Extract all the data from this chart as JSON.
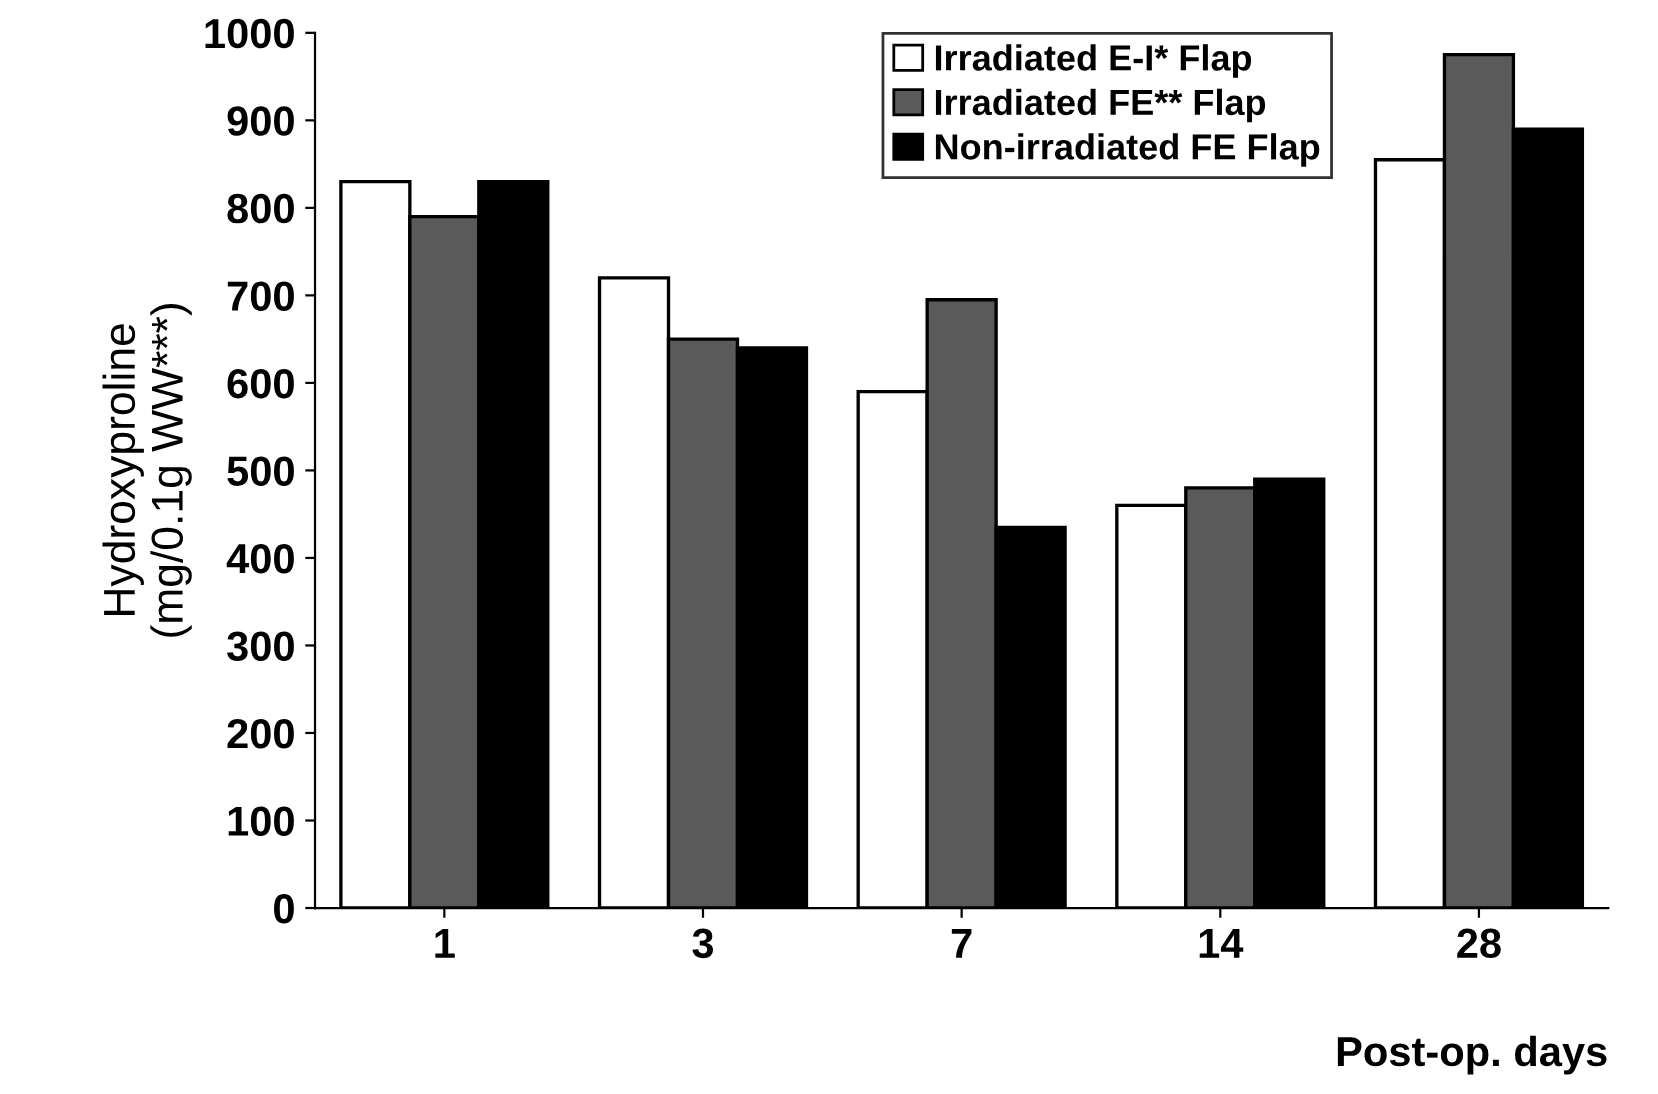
{
  "chart_data": {
    "type": "bar",
    "xlabel": "Post-op. days",
    "ylabel": "Hydroxyproline\n(mg/0.1g WW***)",
    "categories": [
      "1",
      "3",
      "7",
      "14",
      "28"
    ],
    "series": [
      {
        "name": "Irradiated E-I* Flap",
        "color": "#ffffff",
        "values": [
          830,
          720,
          590,
          460,
          855
        ]
      },
      {
        "name": "Irradiated FE** Flap",
        "color": "#5a5a5a",
        "values": [
          790,
          650,
          695,
          480,
          975
        ]
      },
      {
        "name": "Non-irradiated FE Flap",
        "color": "#000000",
        "values": [
          830,
          640,
          435,
          490,
          890
        ]
      }
    ],
    "ylim": [
      0,
      1000
    ],
    "yticks": [
      0,
      100,
      200,
      300,
      400,
      500,
      600,
      700,
      800,
      900,
      1000
    ],
    "grid": false,
    "legend": "top right"
  }
}
